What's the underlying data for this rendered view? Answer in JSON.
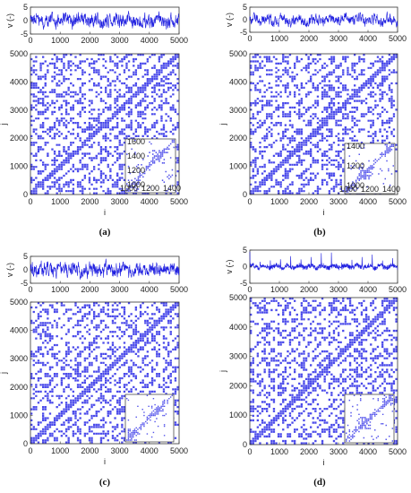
{
  "chart_data": [
    {
      "type": "recurrence-plot",
      "panel": "a",
      "caption": "(a)",
      "signal": {
        "ylabel": "v (-)",
        "ylim": [
          -5,
          5
        ],
        "yticks": [
          -5,
          0,
          5
        ],
        "xlim": [
          0,
          5000
        ],
        "xticks": [
          0,
          1000,
          2000,
          3000,
          4000,
          5000
        ],
        "amplitude": 2.5,
        "spikes": false
      },
      "recurrence": {
        "xlabel": "i",
        "ylabel": "j",
        "xlim": [
          0,
          5000
        ],
        "ylim": [
          0,
          5000
        ],
        "xticks": [
          0,
          1000,
          2000,
          3000,
          4000,
          5000
        ],
        "yticks": [
          0,
          1000,
          2000,
          3000,
          4000,
          5000
        ],
        "block_period": 420
      },
      "inset": {
        "xlim": [
          1000,
          1600
        ],
        "ylim": [
          1000,
          1600
        ],
        "tick_labels_x": [
          "1000",
          "1200",
          "1400"
        ],
        "tick_labels_y": [
          "1000",
          "1200",
          "1400",
          "1600"
        ]
      }
    },
    {
      "type": "recurrence-plot",
      "panel": "b",
      "caption": "(b)",
      "signal": {
        "ylabel": "v (-)",
        "ylim": [
          -5,
          5
        ],
        "yticks": [
          -5,
          0,
          5
        ],
        "xlim": [
          0,
          5000
        ],
        "xticks": [
          0,
          1000,
          2000,
          3000,
          4000,
          5000
        ],
        "amplitude": 2.0,
        "spikes": false
      },
      "recurrence": {
        "xlabel": "i",
        "ylabel": "j",
        "xlim": [
          0,
          5000
        ],
        "ylim": [
          0,
          5000
        ],
        "xticks": [
          0,
          1000,
          2000,
          3000,
          4000,
          5000
        ],
        "yticks": [
          0,
          1000,
          2000,
          3000,
          4000,
          5000
        ],
        "block_period": 520
      },
      "inset": {
        "xlim": [
          1000,
          1600
        ],
        "ylim": [
          1000,
          1600
        ],
        "tick_labels_x": [
          "1000",
          "1200",
          "1400"
        ],
        "tick_labels_y": [
          "1000",
          "1200",
          "1400"
        ]
      }
    },
    {
      "type": "recurrence-plot",
      "panel": "c",
      "caption": "(c)",
      "signal": {
        "ylabel": "v (-)",
        "ylim": [
          -5,
          5
        ],
        "yticks": [
          -5,
          0,
          5
        ],
        "xlim": [
          0,
          5000
        ],
        "xticks": [
          0,
          1000,
          2000,
          3000,
          4000,
          5000
        ],
        "amplitude": 2.5,
        "spikes": false
      },
      "recurrence": {
        "xlabel": "i",
        "ylabel": "j",
        "xlim": [
          0,
          5000
        ],
        "ylim": [
          0,
          5000
        ],
        "xticks": [
          0,
          1000,
          2000,
          3000,
          4000,
          5000
        ],
        "yticks": [
          0,
          1000,
          2000,
          3000,
          4000,
          5000
        ],
        "block_period": 380
      },
      "inset": {
        "xlim": [
          1000,
          1600
        ],
        "ylim": [
          1000,
          1600
        ],
        "tick_labels_x": [],
        "tick_labels_y": []
      }
    },
    {
      "type": "recurrence-plot",
      "panel": "d",
      "caption": "(d)",
      "signal": {
        "ylabel": "v (-)",
        "ylim": [
          -5,
          5
        ],
        "yticks": [
          -5,
          0,
          5
        ],
        "xlim": [
          0,
          5000
        ],
        "xticks": [
          0,
          1000,
          2000,
          3000,
          4000,
          5000
        ],
        "amplitude": 1.2,
        "spikes": true,
        "spike_period": 345
      },
      "recurrence": {
        "xlabel": "i",
        "ylabel": "j",
        "xlim": [
          0,
          5000
        ],
        "ylim": [
          0,
          5000
        ],
        "xticks": [
          0,
          1000,
          2000,
          3000,
          4000,
          5000
        ],
        "yticks": [
          0,
          1000,
          2000,
          3000,
          4000,
          5000
        ],
        "block_period": 345
      },
      "inset": {
        "xlim": [
          1000,
          1600
        ],
        "ylim": [
          1000,
          1600
        ],
        "tick_labels_x": [],
        "tick_labels_y": []
      }
    }
  ],
  "colors": {
    "trace": "#1f1fe0",
    "recurrence": "#2a2ae6",
    "axis": "#333333",
    "background": "#ffffff"
  }
}
